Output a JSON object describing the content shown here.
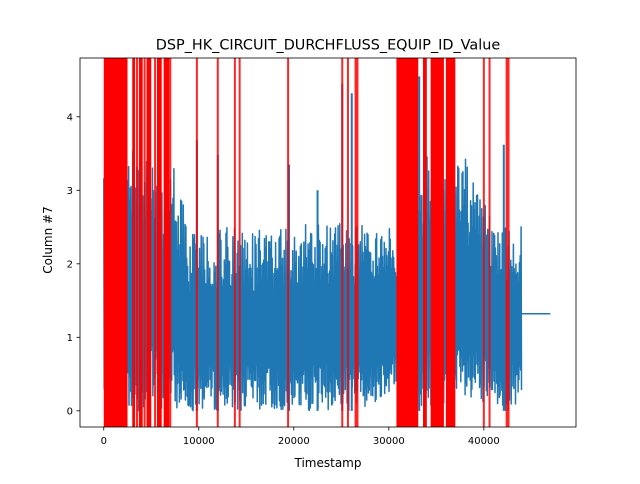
{
  "chart_data": {
    "type": "line",
    "title": "DSP_HK_CIRCUIT_DURCHFLUSS_EQUIP_ID_Value",
    "xlabel": "Timestamp",
    "ylabel": "Column #7",
    "xlim": [
      -2500,
      49700
    ],
    "ylim": [
      -0.22,
      4.8
    ],
    "x_ticks": [
      0,
      10000,
      20000,
      30000,
      40000
    ],
    "x_tick_labels": [
      "0",
      "10000",
      "20000",
      "30000",
      "40000"
    ],
    "y_ticks": [
      0,
      1,
      2,
      3,
      4
    ],
    "y_tick_labels": [
      "0",
      "1",
      "2",
      "3",
      "4"
    ],
    "grid": false,
    "series": [
      {
        "color": "#1f77b4",
        "style": "dense oscillating signal between ~0 and upper envelope; constant 1.32 after ~44000",
        "envelope": {
          "x": [
            0,
            400,
            2800,
            3100,
            3500,
            4200,
            5500,
            6900,
            7000,
            9000,
            10000,
            12000,
            14000,
            16000,
            18000,
            20000,
            22000,
            24000,
            26000,
            28000,
            30500,
            31000,
            32000,
            34000,
            35000,
            36000,
            37000,
            38000,
            39000,
            41000,
            42500,
            44000
          ],
          "upper": [
            4.0,
            3.9,
            3.6,
            3.7,
            3.6,
            3.7,
            3.6,
            2.5,
            3.6,
            2.45,
            2.45,
            2.5,
            2.5,
            2.5,
            2.45,
            2.5,
            2.55,
            2.55,
            2.55,
            2.5,
            2.48,
            1.95,
            1.95,
            3.5,
            3.9,
            3.3,
            3.4,
            3.5,
            3.35,
            2.5,
            2.55,
            2.6
          ],
          "lower": [
            0.0,
            0.0,
            0.0,
            0.0,
            0.0,
            0.0,
            0.0,
            0.0,
            0.0,
            0.0,
            0.0,
            0.0,
            0.0,
            0.0,
            0.0,
            0.0,
            0.0,
            0.0,
            0.0,
            0.05,
            0.3,
            0.2,
            0.0,
            0.0,
            0.0,
            0.0,
            0.0,
            0.0,
            0.0,
            0.0,
            0.0,
            0.0
          ]
        },
        "spikes": [
          {
            "x": 9800,
            "y": 3.68
          },
          {
            "x": 12000,
            "y": 3.48
          },
          {
            "x": 19500,
            "y": 3.35
          },
          {
            "x": 22500,
            "y": 3.0
          },
          {
            "x": 25100,
            "y": 4.45
          },
          {
            "x": 26100,
            "y": 4.32
          },
          {
            "x": 33200,
            "y": 4.55
          },
          {
            "x": 42100,
            "y": 3.62
          }
        ],
        "tail": {
          "x_start": 44000,
          "x_end": 47000,
          "value": 1.32
        }
      }
    ],
    "anomaly_spans": {
      "color": "#ff0000",
      "regions": [
        [
          0,
          2500
        ],
        [
          3000,
          3300
        ],
        [
          3700,
          4100
        ],
        [
          4500,
          5000
        ],
        [
          5600,
          6100
        ],
        [
          6300,
          6900
        ],
        [
          30800,
          33100
        ],
        [
          33600,
          34000
        ],
        [
          34400,
          35800
        ],
        [
          36000,
          37000
        ]
      ],
      "lines": [
        3500,
        4300,
        5400,
        7000,
        9800,
        12000,
        13800,
        14300,
        19400,
        25100,
        25700,
        26500,
        26700,
        40000,
        40600,
        42400,
        42600
      ]
    }
  }
}
